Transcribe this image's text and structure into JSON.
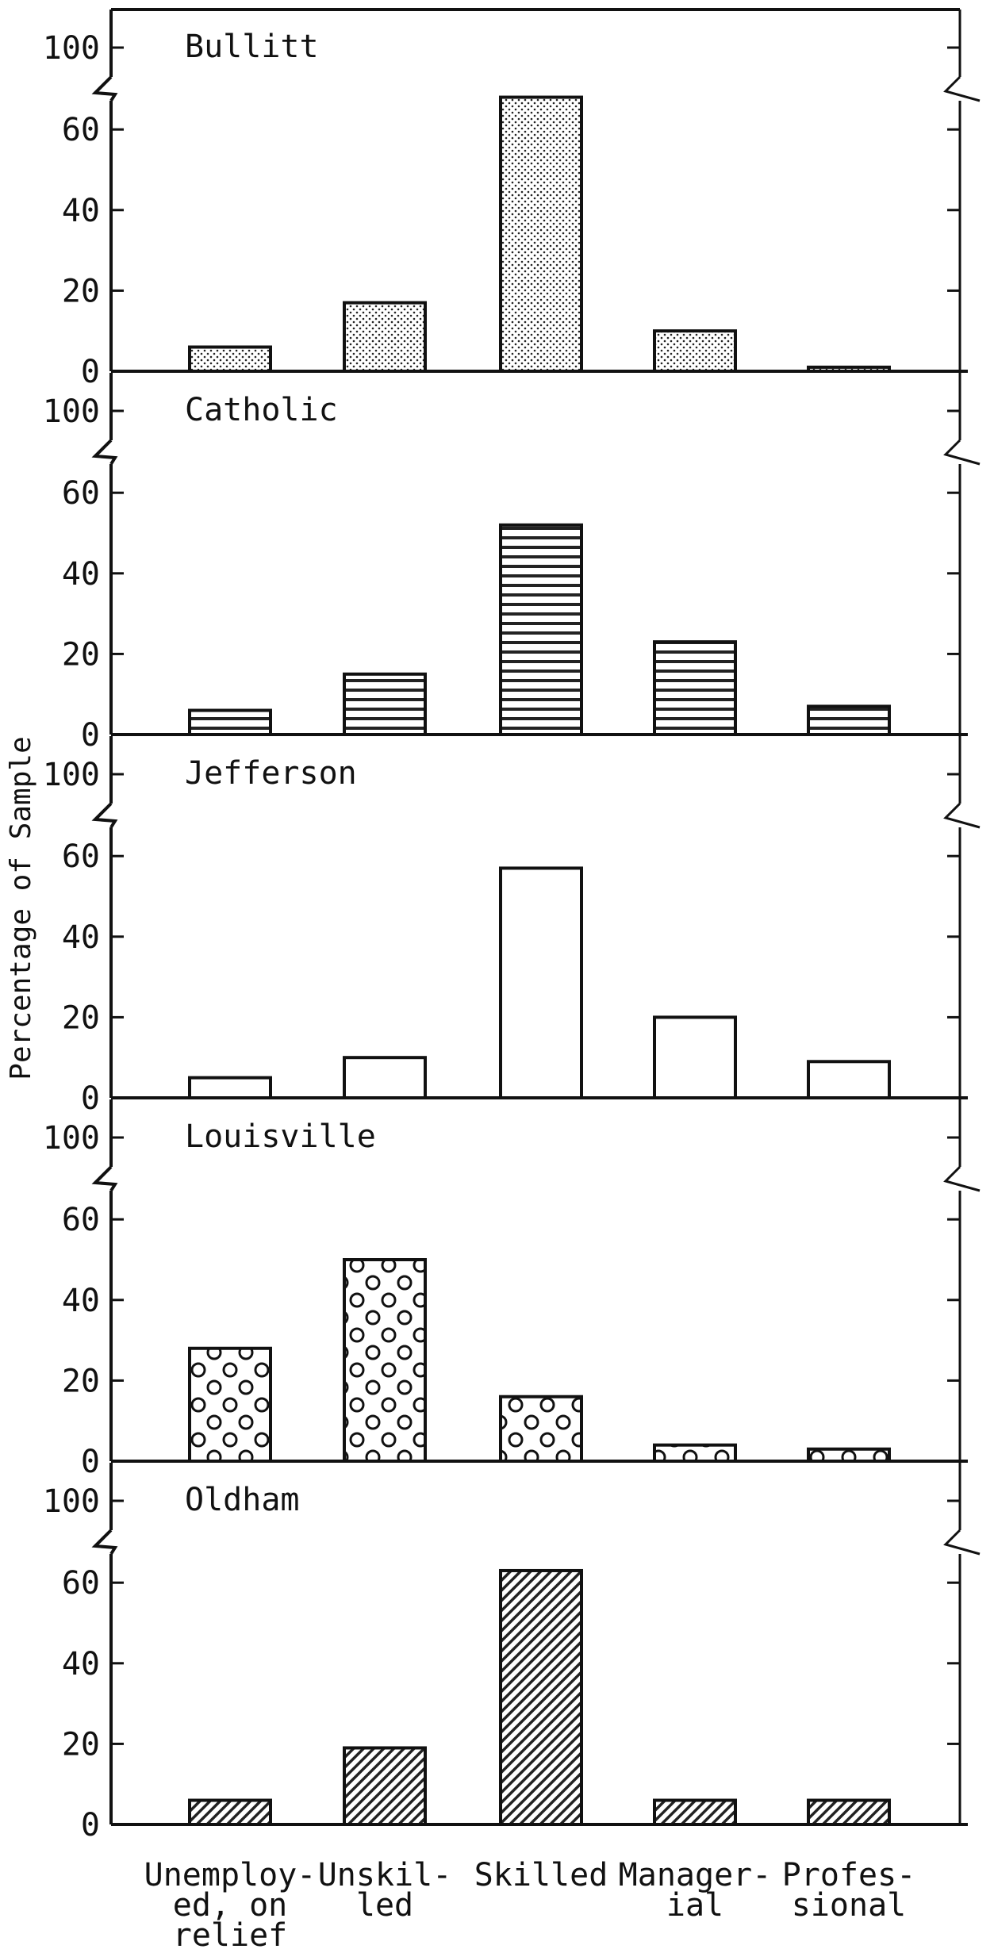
{
  "chart_data": {
    "type": "bar",
    "ylabel": "Percentage of Sample",
    "categories": [
      [
        "Unemploy-",
        "ed, on",
        "relief"
      ],
      [
        "Unskil-",
        "led"
      ],
      [
        "Skilled"
      ],
      [
        "Manager-",
        "ial"
      ],
      [
        "Profes-",
        "sional"
      ]
    ],
    "y_ticks": [
      0,
      20,
      40,
      60,
      100
    ],
    "ylim": [
      0,
      100
    ],
    "axis_break": "between 60 and 100",
    "panels": [
      {
        "title": "Bullitt",
        "pattern": "dots",
        "values": [
          6,
          17,
          68,
          10,
          1
        ]
      },
      {
        "title": "Catholic",
        "pattern": "horizontal",
        "values": [
          6,
          15,
          52,
          23,
          7
        ]
      },
      {
        "title": "Jefferson",
        "pattern": "blank",
        "values": [
          5,
          10,
          57,
          20,
          9
        ]
      },
      {
        "title": "Louisville",
        "pattern": "circles",
        "values": [
          28,
          50,
          16,
          4,
          3
        ]
      },
      {
        "title": "Oldham",
        "pattern": "diagonal",
        "values": [
          6,
          19,
          63,
          6,
          6
        ]
      }
    ]
  }
}
